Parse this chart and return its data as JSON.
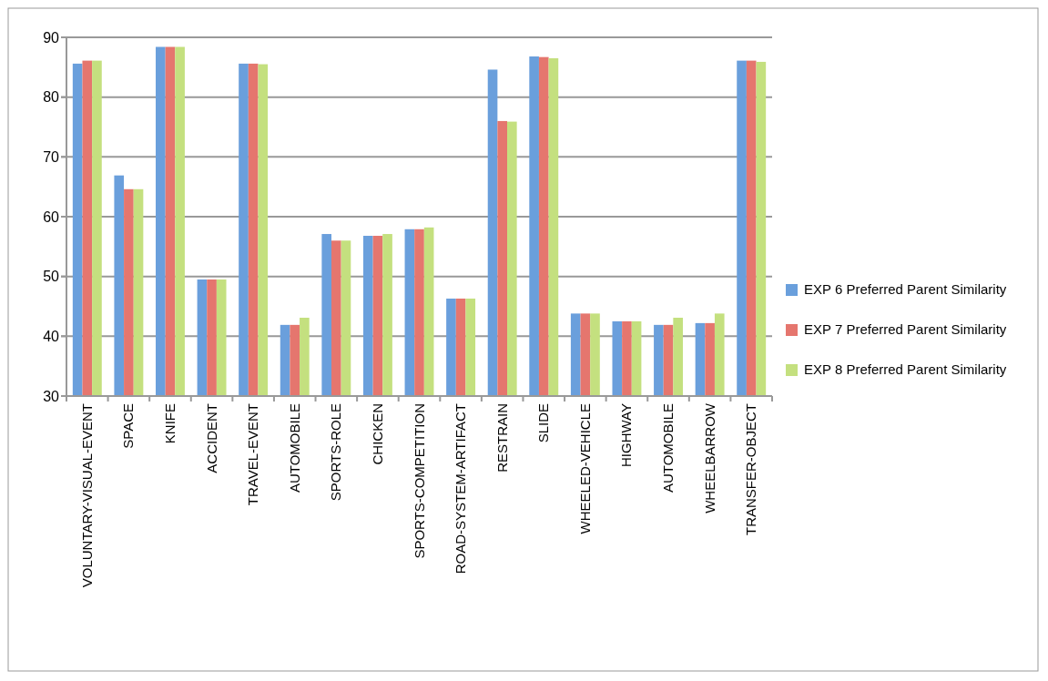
{
  "chart_data": {
    "type": "bar",
    "categories": [
      "VOLUNTARY-VISUAL-EVENT",
      "SPACE",
      "KNIFE",
      "ACCIDENT",
      "TRAVEL-EVENT",
      "AUTOMOBILE",
      "SPORTS-ROLE",
      "CHICKEN",
      "SPORTS-COMPETITION",
      "ROAD-SYSTEM-ARTIFACT",
      "RESTRAIN",
      "SLIDE",
      "WHEELED-VEHICLE",
      "HIGHWAY",
      "AUTOMOBILE",
      "WHEELBARROW",
      "TRANSFER-OBJECT"
    ],
    "series": [
      {
        "name": "EXP 6 Preferred Parent Similarity",
        "color": "#6a9fdc",
        "values": [
          85.6,
          66.9,
          88.4,
          49.5,
          85.6,
          41.9,
          57.1,
          56.8,
          57.9,
          46.3,
          84.6,
          86.8,
          43.8,
          42.5,
          41.9,
          42.2,
          86.1
        ]
      },
      {
        "name": "EXP 7 Preferred Parent Similarity",
        "color": "#e5766e",
        "values": [
          86.1,
          64.6,
          88.4,
          49.5,
          85.6,
          41.9,
          56.0,
          56.8,
          57.9,
          46.3,
          76.0,
          86.7,
          43.8,
          42.5,
          41.9,
          42.2,
          86.1
        ]
      },
      {
        "name": "EXP 8 Preferred Parent Similarity",
        "color": "#c4e07f",
        "values": [
          86.1,
          64.6,
          88.4,
          49.5,
          85.5,
          43.1,
          56.0,
          57.1,
          58.2,
          46.3,
          75.9,
          86.5,
          43.8,
          42.5,
          43.1,
          43.8,
          85.9
        ]
      }
    ],
    "ylim": [
      30,
      90
    ],
    "yticks": [
      30,
      40,
      50,
      60,
      70,
      80,
      90
    ],
    "grid": "y",
    "legend": "right"
  }
}
